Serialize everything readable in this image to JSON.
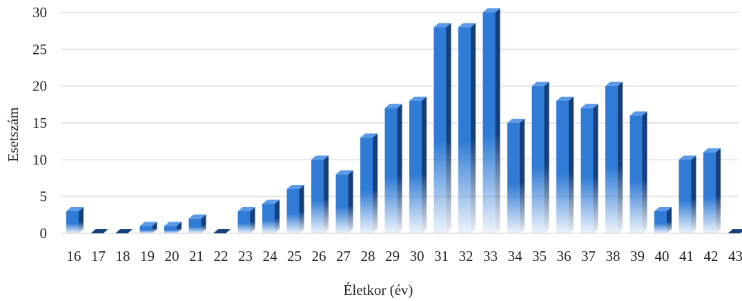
{
  "chart_data": {
    "type": "bar",
    "title": "",
    "xlabel": "Életkor (év)",
    "ylabel": "Esetszám",
    "ylim": [
      0,
      30
    ],
    "yticks": [
      0,
      5,
      10,
      15,
      20,
      25,
      30
    ],
    "grid": true,
    "legend": "none",
    "bar_style": "3d-gradient",
    "colors": {
      "bar_front": "#2f7bd6",
      "bar_side": "#163f7a",
      "bar_top": "#5a9ae8",
      "grid": "#e6e6e6"
    },
    "categories": [
      "16",
      "17",
      "18",
      "19",
      "20",
      "21",
      "22",
      "23",
      "24",
      "25",
      "26",
      "27",
      "28",
      "29",
      "30",
      "31",
      "32",
      "33",
      "34",
      "35",
      "36",
      "37",
      "38",
      "39",
      "40",
      "41",
      "42",
      "43"
    ],
    "values": [
      3,
      0,
      0,
      1,
      1,
      2,
      0,
      3,
      4,
      6,
      10,
      8,
      13,
      17,
      18,
      28,
      28,
      30,
      15,
      20,
      18,
      17,
      20,
      16,
      3,
      10,
      11,
      0
    ]
  }
}
